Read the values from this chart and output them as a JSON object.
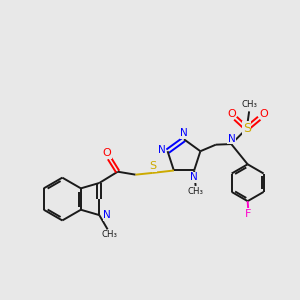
{
  "bg_color": "#e8e8e8",
  "bond_color": "#1a1a1a",
  "n_color": "#0000ff",
  "o_color": "#ff0000",
  "s_color": "#ccaa00",
  "f_color": "#ff00cc",
  "lw": 1.4,
  "dbo": 0.07,
  "fs": 7.5,
  "xlim": [
    0,
    10
  ],
  "ylim": [
    0,
    10
  ]
}
